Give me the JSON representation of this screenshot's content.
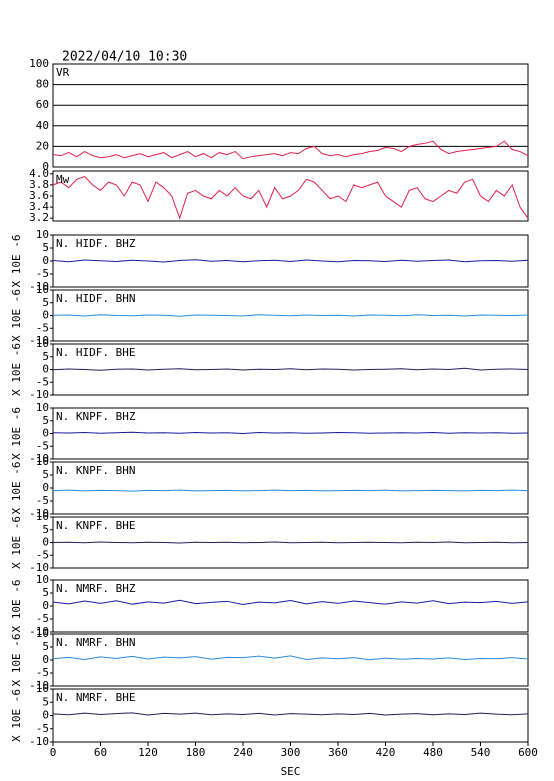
{
  "chart_data": [
    {
      "type": "line",
      "title": "2022/04/10 10:30",
      "xlim": [
        0,
        600
      ],
      "ylim": [
        0,
        100
      ],
      "yticks": [
        0,
        20,
        40,
        60,
        80,
        100
      ],
      "grid": true,
      "x": [
        0,
        10,
        20,
        30,
        40,
        50,
        60,
        70,
        80,
        90,
        100,
        110,
        120,
        130,
        140,
        150,
        160,
        170,
        180,
        190,
        200,
        210,
        220,
        230,
        240,
        250,
        260,
        270,
        280,
        290,
        300,
        310,
        320,
        330,
        340,
        350,
        360,
        370,
        380,
        390,
        400,
        410,
        420,
        430,
        440,
        450,
        460,
        470,
        480,
        490,
        500,
        510,
        520,
        530,
        540,
        550,
        560,
        570,
        580,
        590,
        600
      ],
      "series": [
        {
          "name": "VR",
          "color": "#e0204a",
          "values": [
            12,
            11,
            14,
            10,
            15,
            11,
            9,
            10,
            12,
            9,
            11,
            13,
            10,
            12,
            14,
            9,
            12,
            15,
            10,
            13,
            9,
            14,
            12,
            15,
            8,
            10,
            11,
            12,
            13,
            11,
            14,
            13,
            18,
            20,
            13,
            11,
            12,
            10,
            12,
            13,
            15,
            16,
            19,
            18,
            15,
            20,
            22,
            23,
            25,
            17,
            13,
            15,
            16,
            17,
            18,
            19,
            20,
            25,
            17,
            15,
            11
          ]
        }
      ]
    },
    {
      "type": "line",
      "xlim": [
        0,
        600
      ],
      "ylim": [
        3.15,
        4.05
      ],
      "yticks": [
        {
          "value": 3.2,
          "label": "3.2"
        },
        {
          "value": 3.4,
          "label": "3.4"
        },
        {
          "value": 3.6,
          "label": "3.6"
        },
        {
          "value": 3.8,
          "label": "3.8"
        },
        {
          "value": 4.0,
          "label": "4.0"
        }
      ],
      "grid": false,
      "x": [
        0,
        10,
        20,
        30,
        40,
        50,
        60,
        70,
        80,
        90,
        100,
        110,
        120,
        130,
        140,
        150,
        160,
        170,
        180,
        190,
        200,
        210,
        220,
        230,
        240,
        250,
        260,
        270,
        280,
        290,
        300,
        310,
        320,
        330,
        340,
        350,
        360,
        370,
        380,
        390,
        400,
        410,
        420,
        430,
        440,
        450,
        460,
        470,
        480,
        490,
        500,
        510,
        520,
        530,
        540,
        550,
        560,
        570,
        580,
        590,
        600
      ],
      "series": [
        {
          "name": "Mw",
          "color": "#e0204a",
          "values": [
            3.8,
            3.85,
            3.75,
            3.9,
            3.95,
            3.8,
            3.7,
            3.85,
            3.8,
            3.6,
            3.85,
            3.8,
            3.5,
            3.85,
            3.75,
            3.6,
            3.2,
            3.65,
            3.7,
            3.6,
            3.55,
            3.7,
            3.6,
            3.75,
            3.6,
            3.55,
            3.7,
            3.4,
            3.75,
            3.55,
            3.6,
            3.7,
            3.9,
            3.85,
            3.7,
            3.55,
            3.6,
            3.5,
            3.8,
            3.75,
            3.8,
            3.85,
            3.6,
            3.5,
            3.4,
            3.7,
            3.75,
            3.55,
            3.5,
            3.6,
            3.7,
            3.65,
            3.85,
            3.9,
            3.6,
            3.5,
            3.7,
            3.6,
            3.8,
            3.4,
            3.2
          ]
        }
      ]
    },
    {
      "type": "line",
      "xlim": [
        0,
        600
      ],
      "ylim": [
        -10,
        10
      ],
      "yticks": [
        -10,
        -5,
        0,
        5,
        10
      ],
      "ylabel": "X 10E -6",
      "x": [
        0,
        20,
        40,
        60,
        80,
        100,
        120,
        140,
        160,
        180,
        200,
        220,
        240,
        260,
        280,
        300,
        320,
        340,
        360,
        380,
        400,
        420,
        440,
        460,
        480,
        500,
        520,
        540,
        560,
        580,
        600
      ],
      "series": [
        {
          "name": "N. HIDF. BHZ",
          "color": "#1a1aa0",
          "values": [
            0.2,
            -0.3,
            0.4,
            0.1,
            -0.2,
            0.3,
            0,
            -0.4,
            0.2,
            0.5,
            -0.1,
            0.2,
            -0.3,
            0.1,
            0.3,
            -0.2,
            0.4,
            0,
            -0.3,
            0.2,
            0.1,
            -0.2,
            0.3,
            -0.1,
            0.2,
            0.4,
            -0.3,
            0.1,
            0.2,
            -0.1,
            0.3
          ]
        }
      ]
    },
    {
      "type": "line",
      "xlim": [
        0,
        600
      ],
      "ylim": [
        -10,
        10
      ],
      "yticks": [
        -10,
        -5,
        0,
        5,
        10
      ],
      "ylabel": "X 10E -6",
      "x": [
        0,
        20,
        40,
        60,
        80,
        100,
        120,
        140,
        160,
        180,
        200,
        220,
        240,
        260,
        280,
        300,
        320,
        340,
        360,
        380,
        400,
        420,
        440,
        460,
        480,
        500,
        520,
        540,
        560,
        580,
        600
      ],
      "series": [
        {
          "name": "N. HIDF. BHN",
          "color": "#2a8ad8",
          "values": [
            0.1,
            0.2,
            -0.2,
            0.3,
            0,
            -0.1,
            0.2,
            0.1,
            -0.3,
            0.2,
            0.1,
            0,
            -0.2,
            0.3,
            0.1,
            -0.1,
            0.2,
            0,
            0.1,
            -0.2,
            0.2,
            0.1,
            -0.1,
            0.3,
            0,
            0.1,
            -0.2,
            0.2,
            0.1,
            0,
            0.2
          ]
        }
      ]
    },
    {
      "type": "line",
      "xlim": [
        0,
        600
      ],
      "ylim": [
        -10,
        10
      ],
      "yticks": [
        -10,
        -5,
        0,
        5,
        10
      ],
      "ylabel": "X 10E -6",
      "x": [
        0,
        20,
        40,
        60,
        80,
        100,
        120,
        140,
        160,
        180,
        200,
        220,
        240,
        260,
        280,
        300,
        320,
        340,
        360,
        380,
        400,
        420,
        440,
        460,
        480,
        500,
        520,
        540,
        560,
        580,
        600
      ],
      "series": [
        {
          "name": "N. HIDF. BHE",
          "color": "#202060",
          "values": [
            -0.1,
            0.2,
            0,
            -0.3,
            0.1,
            0.2,
            -0.2,
            0.1,
            0.3,
            -0.1,
            0,
            0.2,
            -0.2,
            0.1,
            0,
            0.3,
            -0.1,
            0.2,
            0.1,
            -0.2,
            0,
            0.1,
            0.3,
            -0.1,
            0.2,
            0,
            0.5,
            -0.2,
            0.1,
            0.2,
            0
          ]
        }
      ]
    },
    {
      "type": "line",
      "xlim": [
        0,
        600
      ],
      "ylim": [
        -10,
        10
      ],
      "yticks": [
        -10,
        -5,
        0,
        5,
        10
      ],
      "ylabel": "X 10E -6",
      "x": [
        0,
        20,
        40,
        60,
        80,
        100,
        120,
        140,
        160,
        180,
        200,
        220,
        240,
        260,
        280,
        300,
        320,
        340,
        360,
        380,
        400,
        420,
        440,
        460,
        480,
        500,
        520,
        540,
        560,
        580,
        600
      ],
      "series": [
        {
          "name": "N. KNPF. BHZ",
          "color": "#1a1aa0",
          "values": [
            0.3,
            0.2,
            0.4,
            0.1,
            0.3,
            0.5,
            0.2,
            0.3,
            0.1,
            0.4,
            0.2,
            0.3,
            0,
            0.4,
            0.2,
            0.3,
            0.1,
            0.2,
            0.4,
            0.3,
            0.1,
            0.2,
            0.3,
            0.2,
            0.4,
            0.1,
            0.3,
            0.2,
            0.3,
            0.1,
            0.2
          ]
        }
      ]
    },
    {
      "type": "line",
      "xlim": [
        0,
        600
      ],
      "ylim": [
        -10,
        10
      ],
      "yticks": [
        -10,
        -5,
        0,
        5,
        10
      ],
      "ylabel": "X 10E -6",
      "x": [
        0,
        20,
        40,
        60,
        80,
        100,
        120,
        140,
        160,
        180,
        200,
        220,
        240,
        260,
        280,
        300,
        320,
        340,
        360,
        380,
        400,
        420,
        440,
        460,
        480,
        500,
        520,
        540,
        560,
        580,
        600
      ],
      "series": [
        {
          "name": "N. KNPF. BHN",
          "color": "#2a8ad8",
          "values": [
            -1,
            -0.8,
            -1.1,
            -0.9,
            -1,
            -1.2,
            -0.9,
            -1,
            -0.8,
            -1.1,
            -1,
            -0.9,
            -1.1,
            -1,
            -0.8,
            -1,
            -0.9,
            -1.1,
            -1,
            -0.9,
            -1,
            -0.8,
            -1.1,
            -1,
            -0.9,
            -1,
            -1.1,
            -0.9,
            -1,
            -0.8,
            -1
          ]
        }
      ]
    },
    {
      "type": "line",
      "xlim": [
        0,
        600
      ],
      "ylim": [
        -10,
        10
      ],
      "yticks": [
        -10,
        -5,
        0,
        5,
        10
      ],
      "ylabel": "X 10E -6",
      "x": [
        0,
        20,
        40,
        60,
        80,
        100,
        120,
        140,
        160,
        180,
        200,
        220,
        240,
        260,
        280,
        300,
        320,
        340,
        360,
        380,
        400,
        420,
        440,
        460,
        480,
        500,
        520,
        540,
        560,
        580,
        600
      ],
      "series": [
        {
          "name": "N. KNPF. BHE",
          "color": "#202060",
          "values": [
            0,
            0.1,
            -0.1,
            0.2,
            0,
            -0.1,
            0.1,
            0,
            -0.2,
            0.1,
            0,
            0.1,
            -0.1,
            0,
            0.2,
            -0.1,
            0,
            0.1,
            -0.1,
            0,
            0.1,
            0,
            -0.1,
            0.1,
            0,
            0.2,
            -0.1,
            0,
            0.1,
            -0.1,
            0
          ]
        }
      ]
    },
    {
      "type": "line",
      "xlim": [
        0,
        600
      ],
      "ylim": [
        -10,
        10
      ],
      "yticks": [
        -10,
        -5,
        0,
        5,
        10
      ],
      "ylabel": "X 10E -6",
      "x": [
        0,
        20,
        40,
        60,
        80,
        100,
        120,
        140,
        160,
        180,
        200,
        220,
        240,
        260,
        280,
        300,
        320,
        340,
        360,
        380,
        400,
        420,
        440,
        460,
        480,
        500,
        520,
        540,
        560,
        580,
        600
      ],
      "series": [
        {
          "name": "N. NMRF. BHZ",
          "color": "#1a1aa0",
          "values": [
            1.5,
            0.8,
            1.9,
            1.0,
            2.0,
            0.7,
            1.6,
            1.1,
            2.2,
            0.9,
            1.4,
            1.8,
            0.6,
            1.5,
            1.2,
            2.1,
            0.8,
            1.7,
            1.0,
            1.9,
            1.3,
            0.7,
            1.6,
            1.1,
            2.0,
            0.9,
            1.5,
            1.3,
            1.8,
            1.0,
            1.6
          ]
        }
      ]
    },
    {
      "type": "line",
      "xlim": [
        0,
        600
      ],
      "ylim": [
        -10,
        10
      ],
      "yticks": [
        -10,
        -5,
        0,
        5,
        10
      ],
      "ylabel": "X 10E -6",
      "x": [
        0,
        20,
        40,
        60,
        80,
        100,
        120,
        140,
        160,
        180,
        200,
        220,
        240,
        260,
        280,
        300,
        320,
        340,
        360,
        380,
        400,
        420,
        440,
        460,
        480,
        500,
        520,
        540,
        560,
        580,
        600
      ],
      "series": [
        {
          "name": "N. NMRF. BHN",
          "color": "#2a8ad8",
          "values": [
            0.5,
            1.0,
            0.2,
            1.2,
            0.6,
            1.4,
            0.4,
            1.1,
            0.8,
            1.3,
            0.3,
            1.0,
            0.9,
            1.5,
            0.7,
            1.6,
            0.2,
            0.8,
            0.5,
            0.9,
            0.1,
            0.7,
            0.3,
            0.6,
            0.4,
            0.8,
            0.2,
            0.6,
            0.5,
            0.9,
            0.4
          ]
        }
      ]
    },
    {
      "type": "line",
      "xlim": [
        0,
        600
      ],
      "ylim": [
        -10,
        10
      ],
      "yticks": [
        -10,
        -5,
        0,
        5,
        10
      ],
      "ylabel": "X 10E -6",
      "x": [
        0,
        20,
        40,
        60,
        80,
        100,
        120,
        140,
        160,
        180,
        200,
        220,
        240,
        260,
        280,
        300,
        320,
        340,
        360,
        380,
        400,
        420,
        440,
        460,
        480,
        500,
        520,
        540,
        560,
        580,
        600
      ],
      "xticks": [
        0,
        60,
        120,
        180,
        240,
        300,
        360,
        420,
        480,
        540,
        600
      ],
      "xlabel": "SEC",
      "series": [
        {
          "name": "N. NMRF. BHE",
          "color": "#202060",
          "values": [
            0.6,
            0.3,
            0.9,
            0.4,
            0.7,
            1.0,
            0.2,
            0.8,
            0.5,
            0.9,
            0.3,
            0.6,
            0.4,
            0.8,
            0.2,
            0.7,
            0.5,
            0.3,
            0.6,
            0.4,
            0.8,
            0.2,
            0.5,
            0.7,
            0.3,
            0.6,
            0.4,
            0.9,
            0.5,
            0.3,
            0.6
          ]
        }
      ]
    }
  ]
}
